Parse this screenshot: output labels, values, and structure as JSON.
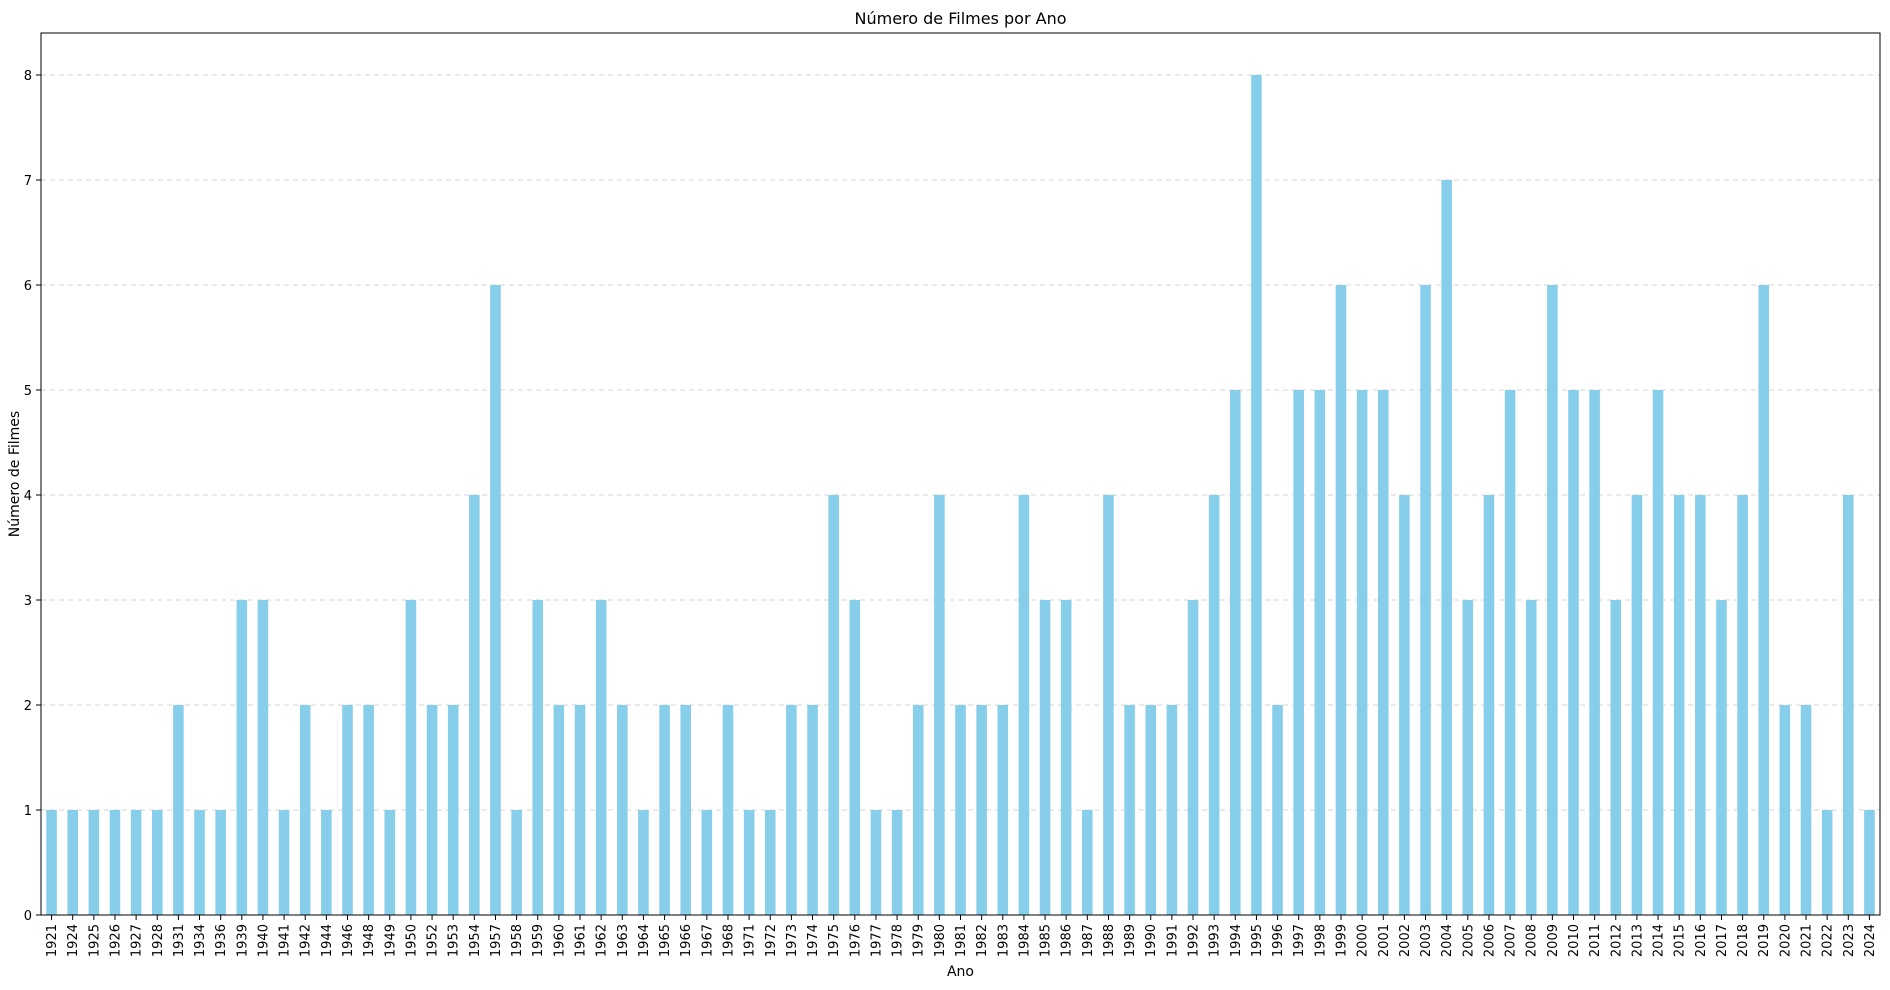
{
  "chart_data": {
    "type": "bar",
    "title": "Número de Filmes por Ano",
    "xlabel": "Ano",
    "ylabel": "Número de Filmes",
    "ylim": [
      0,
      8.4
    ],
    "yticks": [
      "0",
      "1",
      "2",
      "3",
      "4",
      "5",
      "6",
      "7",
      "8"
    ],
    "grid": "y-dashed",
    "bar_color": "#87ceeb",
    "categories": [
      "1921",
      "1924",
      "1925",
      "1926",
      "1927",
      "1928",
      "1931",
      "1934",
      "1936",
      "1939",
      "1940",
      "1941",
      "1942",
      "1944",
      "1946",
      "1948",
      "1949",
      "1950",
      "1952",
      "1953",
      "1954",
      "1957",
      "1958",
      "1959",
      "1960",
      "1961",
      "1962",
      "1963",
      "1964",
      "1965",
      "1966",
      "1967",
      "1968",
      "1971",
      "1972",
      "1973",
      "1974",
      "1975",
      "1976",
      "1977",
      "1978",
      "1979",
      "1980",
      "1981",
      "1982",
      "1983",
      "1984",
      "1985",
      "1986",
      "1987",
      "1988",
      "1989",
      "1990",
      "1991",
      "1992",
      "1993",
      "1994",
      "1995",
      "1996",
      "1997",
      "1998",
      "1999",
      "2000",
      "2001",
      "2002",
      "2003",
      "2004",
      "2005",
      "2006",
      "2007",
      "2008",
      "2009",
      "2010",
      "2011",
      "2012",
      "2013",
      "2014",
      "2015",
      "2016",
      "2017",
      "2018",
      "2019",
      "2020",
      "2021",
      "2022",
      "2023",
      "2024"
    ],
    "values": [
      1,
      1,
      1,
      1,
      1,
      1,
      2,
      1,
      1,
      3,
      3,
      1,
      2,
      1,
      2,
      2,
      1,
      3,
      2,
      2,
      4,
      6,
      1,
      3,
      2,
      2,
      3,
      2,
      1,
      2,
      2,
      1,
      2,
      1,
      1,
      2,
      2,
      4,
      3,
      1,
      1,
      2,
      4,
      2,
      2,
      2,
      4,
      3,
      3,
      1,
      4,
      2,
      2,
      2,
      3,
      4,
      5,
      8,
      2,
      5,
      5,
      6,
      5,
      5,
      4,
      6,
      7,
      3,
      4,
      5,
      3,
      6,
      5,
      5,
      3,
      4,
      5,
      4,
      4,
      3,
      4,
      6,
      2,
      2,
      1,
      4,
      1
    ]
  }
}
